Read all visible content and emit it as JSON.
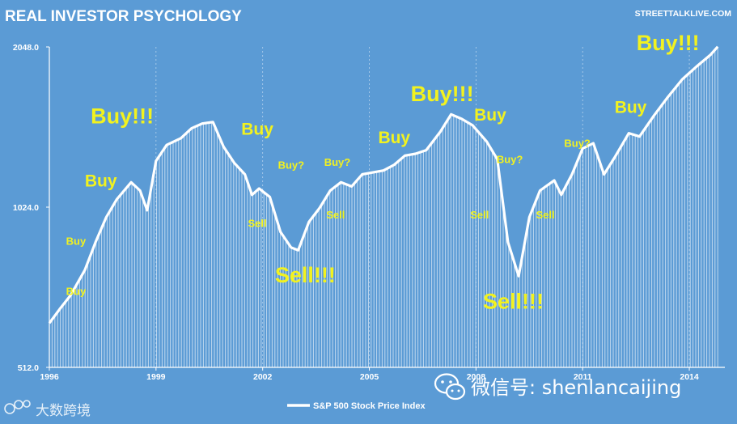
{
  "header": {
    "title": "REAL INVESTOR  PSYCHOLOGY",
    "source": "STREETTALKLIVE.COM"
  },
  "colors": {
    "background": "#5b9bd5",
    "line": "#ffffff",
    "annotation": "#f2f21f"
  },
  "chart_data": {
    "type": "area",
    "title": "REAL INVESTOR  PSYCHOLOGY",
    "series": [
      {
        "name": "S&P 500 Stock Price Index",
        "x": [
          1996.0,
          1996.3,
          1996.6,
          1997.0,
          1997.3,
          1997.6,
          1997.9,
          1998.3,
          1998.55,
          1998.75,
          1999.0,
          1999.3,
          1999.7,
          2000.0,
          2000.3,
          2000.6,
          2000.9,
          2001.2,
          2001.5,
          2001.7,
          2001.9,
          2002.2,
          2002.5,
          2002.8,
          2003.0,
          2003.3,
          2003.6,
          2003.9,
          2004.2,
          2004.5,
          2004.8,
          2005.1,
          2005.4,
          2005.7,
          2006.0,
          2006.3,
          2006.6,
          2007.0,
          2007.3,
          2007.6,
          2007.9,
          2008.3,
          2008.6,
          2008.9,
          2009.2,
          2009.5,
          2009.8,
          2010.2,
          2010.4,
          2010.7,
          2011.0,
          2011.3,
          2011.6,
          2011.9,
          2012.3,
          2012.6,
          2013.0,
          2013.4,
          2013.8,
          2014.2,
          2014.6,
          2014.8
        ],
        "y": [
          620,
          660,
          700,
          780,
          880,
          980,
          1060,
          1140,
          1100,
          1010,
          1250,
          1340,
          1380,
          1440,
          1470,
          1480,
          1330,
          1240,
          1180,
          1080,
          1110,
          1070,
          920,
          860,
          850,
          960,
          1020,
          1100,
          1140,
          1120,
          1180,
          1190,
          1200,
          1230,
          1280,
          1290,
          1310,
          1420,
          1530,
          1500,
          1460,
          1360,
          1260,
          880,
          760,
          980,
          1100,
          1150,
          1080,
          1180,
          1320,
          1350,
          1180,
          1270,
          1410,
          1390,
          1520,
          1650,
          1780,
          1880,
          1980,
          2050
        ]
      }
    ],
    "x_ticks": [
      "1996",
      "1999",
      "2002",
      "2005",
      "2008",
      "2011",
      "2014"
    ],
    "x_range": [
      1996,
      2015
    ],
    "y_ticks": [
      "512.0",
      "1024.0",
      "2048.0"
    ],
    "y_range": [
      512,
      2048
    ],
    "y_scale": "log2",
    "legend_position": "bottom",
    "annotations": [
      {
        "text": "Buy",
        "year": 1996.75,
        "value": 700,
        "size": "small"
      },
      {
        "text": "Buy",
        "year": 1996.75,
        "value": 870,
        "size": "small"
      },
      {
        "text": "Buy",
        "year": 1997.45,
        "value": 1120,
        "size": "medium"
      },
      {
        "text": "Buy!!!",
        "year": 1998.05,
        "value": 1470,
        "size": "large"
      },
      {
        "text": "Buy",
        "year": 2001.85,
        "value": 1400,
        "size": "medium"
      },
      {
        "text": "Sell",
        "year": 2001.85,
        "value": 940,
        "size": "small"
      },
      {
        "text": "Buy?",
        "year": 2002.8,
        "value": 1210,
        "size": "small"
      },
      {
        "text": "Sell!!!",
        "year": 2003.2,
        "value": 740,
        "size": "large"
      },
      {
        "text": "Buy?",
        "year": 2004.1,
        "value": 1225,
        "size": "small"
      },
      {
        "text": "Sell",
        "year": 2004.05,
        "value": 975,
        "size": "small"
      },
      {
        "text": "Buy",
        "year": 2005.7,
        "value": 1350,
        "size": "medium"
      },
      {
        "text": "Buy!!!",
        "year": 2007.05,
        "value": 1620,
        "size": "large"
      },
      {
        "text": "Buy",
        "year": 2008.4,
        "value": 1490,
        "size": "medium"
      },
      {
        "text": "Sell",
        "year": 2008.1,
        "value": 975,
        "size": "small"
      },
      {
        "text": "Buy?",
        "year": 2008.95,
        "value": 1240,
        "size": "small"
      },
      {
        "text": "Sell!!!",
        "year": 2009.05,
        "value": 660,
        "size": "large"
      },
      {
        "text": "Sell",
        "year": 2009.95,
        "value": 975,
        "size": "small"
      },
      {
        "text": "Buy?",
        "year": 2010.85,
        "value": 1330,
        "size": "small"
      },
      {
        "text": "Buy",
        "year": 2012.35,
        "value": 1540,
        "size": "medium"
      },
      {
        "text": "Buy!!!",
        "year": 2013.4,
        "value": 2020,
        "size": "large"
      }
    ]
  },
  "watermark": {
    "logo_text": "大数跨境",
    "wechat_text": "微信号: shenlancaijing"
  }
}
